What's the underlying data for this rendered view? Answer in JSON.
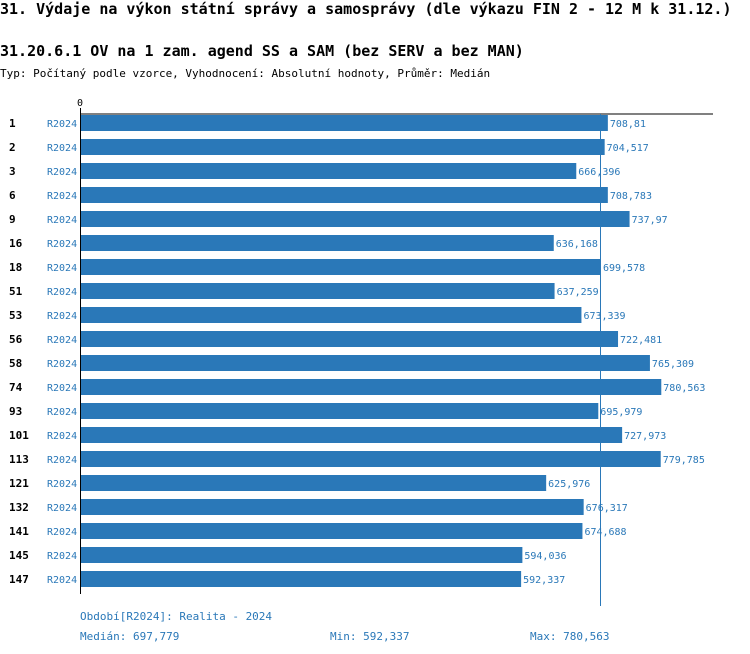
{
  "title": "31. Výdaje na výkon státní správy a samosprávy (dle výkazu FIN 2 - 12 M k 31.12.)",
  "subtitle": "31.20.6.1 OV na 1 zam. agend SS a SAM (bez SERV a bez MAN)",
  "type_line": "Typ: Počítaný podle vzorce, Vyhodnocení: Absolutní hodnoty, Průměr: Medián",
  "colors": {
    "bar": "#2a78b8",
    "median_line": "#2a78b8",
    "label": "#2a78b8",
    "axis": "#000000"
  },
  "chart_data": {
    "type": "bar",
    "orientation": "horizontal",
    "x_axis_tick_label": "0",
    "categories": [
      "1",
      "2",
      "3",
      "6",
      "9",
      "16",
      "18",
      "51",
      "53",
      "56",
      "58",
      "74",
      "93",
      "101",
      "113",
      "121",
      "132",
      "141",
      "145",
      "147"
    ],
    "series_labels": [
      "R2024",
      "R2024",
      "R2024",
      "R2024",
      "R2024",
      "R2024",
      "R2024",
      "R2024",
      "R2024",
      "R2024",
      "R2024",
      "R2024",
      "R2024",
      "R2024",
      "R2024",
      "R2024",
      "R2024",
      "R2024",
      "R2024",
      "R2024"
    ],
    "values": [
      708.81,
      704.517,
      666.396,
      708.783,
      737.97,
      636.168,
      699.578,
      637.259,
      673.339,
      722.481,
      765.309,
      780.563,
      695.979,
      727.973,
      779.785,
      625.976,
      676.317,
      674.688,
      594.036,
      592.337
    ],
    "value_labels": [
      "708,81",
      "704,517",
      "666,396",
      "708,783",
      "737,97",
      "636,168",
      "699,578",
      "637,259",
      "673,339",
      "722,481",
      "765,309",
      "780,563",
      "695,979",
      "727,973",
      "779,785",
      "625,976",
      "676,317",
      "674,688",
      "594,036",
      "592,337"
    ],
    "median": 697.779,
    "xlim": [
      0,
      850
    ]
  },
  "footer": {
    "period": "Období[R2024]: Realita - 2024",
    "median": "Medián: 697,779",
    "min": "Min: 592,337",
    "max": "Max: 780,563"
  }
}
